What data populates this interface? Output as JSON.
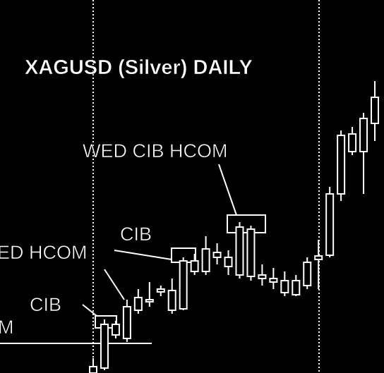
{
  "chart_data": {
    "type": "candlestick",
    "title": "XAGUSD (Silver) DAILY",
    "annotations": [
      "WED CIB HCOM",
      "CIB",
      "ED HCOM",
      "CIB",
      "M"
    ],
    "ylim": [
      0,
      529
    ],
    "color": "#ffffff",
    "open": [
      0,
      7,
      54,
      49,
      89,
      101,
      115,
      89,
      91,
      144,
      144,
      164,
      151,
      139,
      137,
      134,
      129,
      114,
      111,
      124,
      161,
      167,
      254,
      314,
      314,
      354
    ],
    "high": [
      21,
      76,
      74,
      104,
      119,
      129,
      124,
      134,
      164,
      169,
      194,
      184,
      174,
      214,
      209,
      154,
      149,
      144,
      139,
      164,
      189,
      264,
      344,
      349,
      369,
      414
    ],
    "low": [
      0,
      4,
      49,
      44,
      84,
      94,
      109,
      84,
      89,
      139,
      139,
      154,
      139,
      134,
      131,
      124,
      119,
      109,
      109,
      119,
      119,
      164,
      244,
      309,
      254,
      329
    ],
    "close": [
      9,
      69,
      69,
      94,
      107,
      104,
      119,
      117,
      159,
      159,
      176,
      171,
      164,
      207,
      204,
      139,
      134,
      131,
      131,
      157,
      166,
      254,
      337,
      339,
      361,
      391
    ]
  }
}
